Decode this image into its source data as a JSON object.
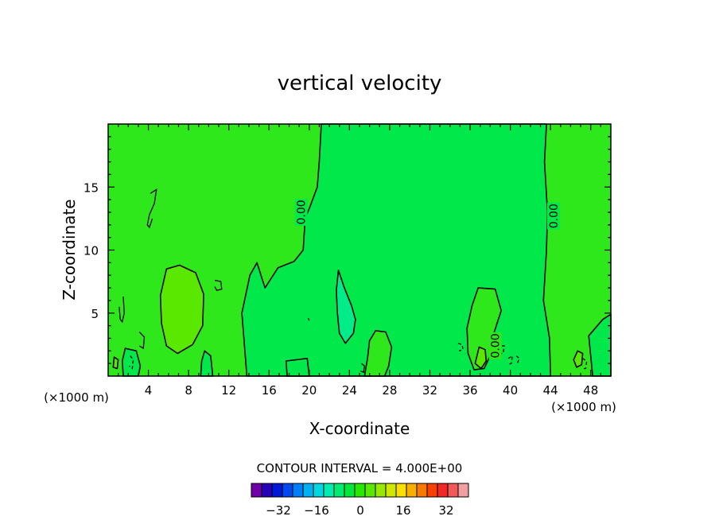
{
  "chart_data": {
    "type": "heatmap",
    "title": "vertical velocity",
    "xlabel": "X-coordinate",
    "ylabel": "Z-coordinate",
    "x_unit": "(×1000 m)",
    "x_unit_right": "(×1000 m)",
    "xlim": [
      0,
      50
    ],
    "ylim": [
      0,
      20
    ],
    "x_ticks": [
      4,
      8,
      12,
      16,
      20,
      24,
      28,
      32,
      36,
      40,
      44,
      48
    ],
    "y_ticks": [
      5,
      10,
      15
    ],
    "contour_labels": [
      "0.00",
      "0.00",
      "0.00"
    ],
    "contour_label_positions": [
      [
        19.2,
        13.0
      ],
      [
        44.3,
        12.7
      ],
      [
        38.5,
        2.4
      ]
    ],
    "background_value": 2,
    "regions": [
      {
        "value": 0,
        "color": "#00e84a",
        "points": [
          [
            21.2,
            20
          ],
          [
            43.6,
            20
          ],
          [
            43.4,
            17
          ],
          [
            43.7,
            13
          ],
          [
            43.6,
            10
          ],
          [
            43.3,
            6
          ],
          [
            43.9,
            3
          ],
          [
            44.0,
            0
          ],
          [
            13.8,
            0
          ],
          [
            13.6,
            2
          ],
          [
            13.3,
            5
          ],
          [
            14.1,
            8
          ],
          [
            14.8,
            9
          ],
          [
            15.6,
            7
          ],
          [
            16.9,
            8.6
          ],
          [
            18.5,
            9.1
          ],
          [
            19.4,
            10
          ],
          [
            19.6,
            12.5
          ],
          [
            20.1,
            13.5
          ],
          [
            20.8,
            15
          ],
          [
            21.0,
            17
          ]
        ]
      },
      {
        "value": -2,
        "color": "#00ec88",
        "points": [
          [
            22.9,
            8.4
          ],
          [
            23.5,
            7.0
          ],
          [
            24.2,
            5.6
          ],
          [
            24.6,
            4.5
          ],
          [
            24.4,
            3.4
          ],
          [
            23.6,
            2.6
          ],
          [
            23.0,
            3.4
          ],
          [
            22.8,
            5.0
          ],
          [
            22.7,
            6.8
          ]
        ]
      },
      {
        "value": 4,
        "color": "#5ae800",
        "points": [
          [
            5.8,
            8.5
          ],
          [
            7.1,
            8.8
          ],
          [
            8.7,
            8.2
          ],
          [
            9.5,
            6.5
          ],
          [
            9.4,
            4.0
          ],
          [
            8.4,
            2.5
          ],
          [
            6.9,
            1.8
          ],
          [
            5.8,
            2.4
          ],
          [
            5.3,
            4.2
          ],
          [
            5.2,
            6.4
          ]
        ]
      },
      {
        "value": 2,
        "color": "#2ee81b",
        "points": [
          [
            36.8,
            7.0
          ],
          [
            38.5,
            6.9
          ],
          [
            39.1,
            5.2
          ],
          [
            38.4,
            3.5
          ],
          [
            38.1,
            1.8
          ],
          [
            37.4,
            0.6
          ],
          [
            36.4,
            0.5
          ],
          [
            35.8,
            1.8
          ],
          [
            35.7,
            3.8
          ],
          [
            36.2,
            5.6
          ]
        ]
      },
      {
        "value": 2,
        "color": "#2ee81b",
        "points": [
          [
            26.6,
            3.6
          ],
          [
            27.6,
            3.5
          ],
          [
            28.2,
            2.3
          ],
          [
            27.9,
            0.8
          ],
          [
            27.5,
            0
          ],
          [
            25.5,
            0
          ],
          [
            25.8,
            1.4
          ],
          [
            26.0,
            2.8
          ]
        ]
      },
      {
        "value": 4,
        "color": "#5ae800",
        "points": [
          [
            36.9,
            2.3
          ],
          [
            37.5,
            2.1
          ],
          [
            37.6,
            1.2
          ],
          [
            37.1,
            0.6
          ],
          [
            36.5,
            1.0
          ]
        ]
      },
      {
        "value": 4,
        "color": "#5ae800",
        "points": [
          [
            46.7,
            2.0
          ],
          [
            47.2,
            1.8
          ],
          [
            47.1,
            0.9
          ],
          [
            46.6,
            0.7
          ],
          [
            46.3,
            1.3
          ]
        ]
      },
      {
        "value": 4,
        "color": "#5ae800",
        "points": [
          [
            0.6,
            1.5
          ],
          [
            1.0,
            1.3
          ],
          [
            0.9,
            0.6
          ],
          [
            0.5,
            0.7
          ]
        ]
      },
      {
        "value": 0,
        "color": "#00e84a",
        "points": [
          [
            1.7,
            2.2
          ],
          [
            2.8,
            2.0
          ],
          [
            3.2,
            0.8
          ],
          [
            3.0,
            0
          ],
          [
            1.5,
            0
          ],
          [
            1.4,
            1.2
          ]
        ]
      },
      {
        "value": 0,
        "color": "#00e84a",
        "points": [
          [
            47.8,
            3.2
          ],
          [
            49.2,
            4.5
          ],
          [
            50,
            4.9
          ],
          [
            50,
            0
          ],
          [
            48.2,
            0
          ],
          [
            48.0,
            1.6
          ]
        ]
      },
      {
        "value": 0,
        "color": "#00e84a",
        "points": [
          [
            9.6,
            2.0
          ],
          [
            10.2,
            1.6
          ],
          [
            10.4,
            0
          ],
          [
            9.2,
            0
          ],
          [
            9.3,
            1.2
          ]
        ]
      },
      {
        "value": 0,
        "color": "#00e84a",
        "points": [
          [
            17.7,
            1.2
          ],
          [
            19.8,
            1.4
          ],
          [
            20.0,
            0
          ],
          [
            17.8,
            0
          ]
        ]
      }
    ],
    "contour_lines": [
      {
        "dashed": false,
        "points": [
          [
            4.2,
            14.5
          ],
          [
            4.8,
            14.8
          ],
          [
            4.6,
            13.7
          ],
          [
            4.1,
            12.8
          ],
          [
            3.9,
            12.0
          ],
          [
            4.1,
            11.8
          ],
          [
            4.4,
            12.5
          ]
        ]
      },
      {
        "dashed": false,
        "points": [
          [
            1.5,
            6.3
          ],
          [
            1.6,
            5.0
          ],
          [
            1.4,
            4.3
          ],
          [
            1.2,
            4.5
          ],
          [
            1.1,
            5.5
          ]
        ]
      },
      {
        "dashed": false,
        "points": [
          [
            10.6,
            7.6
          ],
          [
            11.2,
            7.5
          ],
          [
            11.3,
            6.9
          ],
          [
            10.8,
            6.8
          ],
          [
            10.6,
            7.1
          ]
        ]
      },
      {
        "dashed": false,
        "points": [
          [
            3.1,
            3.5
          ],
          [
            3.6,
            3.1
          ],
          [
            3.5,
            2.2
          ],
          [
            3.1,
            2.4
          ]
        ]
      },
      {
        "dashed": true,
        "points": [
          [
            34.8,
            2.6
          ],
          [
            35.2,
            2.5
          ],
          [
            35.3,
            2.1
          ],
          [
            34.9,
            2.0
          ]
        ]
      },
      {
        "dashed": true,
        "points": [
          [
            38.6,
            2.4
          ],
          [
            39.4,
            2.4
          ],
          [
            39.3,
            1.8
          ],
          [
            38.8,
            1.8
          ]
        ]
      },
      {
        "dashed": true,
        "points": [
          [
            39.8,
            1.4
          ],
          [
            40.2,
            1.6
          ],
          [
            40.1,
            1.0
          ],
          [
            39.7,
            0.9
          ]
        ]
      },
      {
        "dashed": true,
        "points": [
          [
            40.6,
            1.6
          ],
          [
            40.9,
            1.4
          ],
          [
            40.7,
            1.0
          ]
        ]
      },
      {
        "dashed": true,
        "points": [
          [
            47.2,
            1.4
          ],
          [
            47.6,
            1.2
          ],
          [
            47.5,
            0.6
          ],
          [
            47.1,
            0.6
          ]
        ]
      },
      {
        "dashed": false,
        "points": [
          [
            25.2,
            1.0
          ],
          [
            25.5,
            0.8
          ],
          [
            25.4,
            0.3
          ],
          [
            25.1,
            0.4
          ]
        ]
      },
      {
        "dashed": true,
        "points": [
          [
            2.2,
            1.6
          ],
          [
            2.5,
            1.3
          ],
          [
            2.4,
            0.6
          ],
          [
            2.1,
            0.8
          ]
        ]
      },
      {
        "dashed": false,
        "points": [
          [
            19.9,
            4.6
          ],
          [
            20.0,
            4.4
          ]
        ]
      }
    ],
    "colorbar": {
      "title": "CONTOUR INTERVAL =  4.000E+00",
      "tick_labels": [
        "−32",
        "−16",
        "0",
        "16",
        "32"
      ],
      "colors": [
        "#7000a8",
        "#2800b8",
        "#0018d8",
        "#0048f0",
        "#0080f8",
        "#00b0f0",
        "#00d8e0",
        "#00ecb0",
        "#00ec70",
        "#00e83c",
        "#28e800",
        "#5ae800",
        "#98e800",
        "#d0e800",
        "#f8e000",
        "#f8b000",
        "#f87800",
        "#f84000",
        "#f02828",
        "#f05a5a",
        "#f0a0a0"
      ]
    }
  }
}
